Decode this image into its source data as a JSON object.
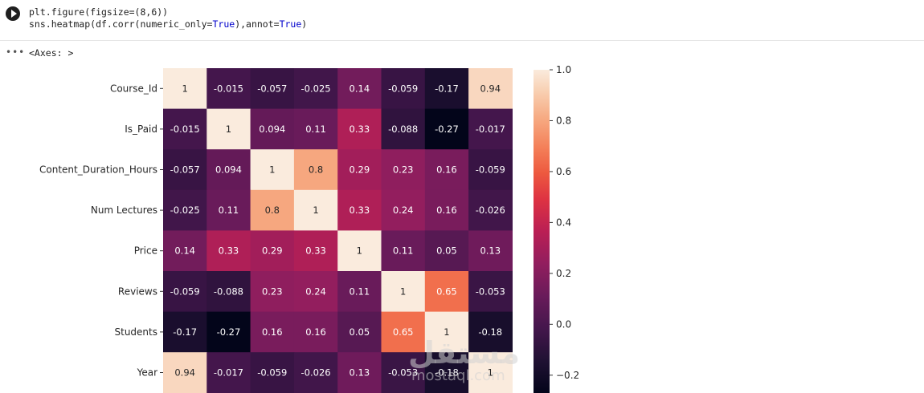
{
  "cell": {
    "code_line1": "plt.figure(figsize=(8,6))",
    "code_line2_a": "sns.heatmap(df.corr(numeric_only=",
    "code_line2_b": "True",
    "code_line2_c": "),annot=",
    "code_line2_d": "True",
    "code_line2_e": ")"
  },
  "output": {
    "more_icon": "ellipsis-icon",
    "axes_text": "<Axes: >"
  },
  "watermark": {
    "arabic": "مستقل",
    "latin": "mostaql.com"
  },
  "chart_data": {
    "type": "heatmap",
    "row_labels": [
      "Course_Id",
      "Is_Paid",
      "Content_Duration_Hours",
      "Num Lectures",
      "Price",
      "Reviews",
      "Students",
      "Year"
    ],
    "col_labels": [],
    "values": [
      [
        1,
        -0.015,
        -0.057,
        -0.025,
        0.14,
        -0.059,
        -0.17,
        0.94
      ],
      [
        -0.015,
        1,
        0.094,
        0.11,
        0.33,
        -0.088,
        -0.27,
        -0.017
      ],
      [
        -0.057,
        0.094,
        1,
        0.8,
        0.29,
        0.23,
        0.16,
        -0.059
      ],
      [
        -0.025,
        0.11,
        0.8,
        1,
        0.33,
        0.24,
        0.16,
        -0.026
      ],
      [
        0.14,
        0.33,
        0.29,
        0.33,
        1,
        0.11,
        0.05,
        0.13
      ],
      [
        -0.059,
        -0.088,
        0.23,
        0.24,
        0.11,
        1,
        0.65,
        -0.053
      ],
      [
        -0.17,
        -0.27,
        0.16,
        0.16,
        0.05,
        0.65,
        1,
        -0.18
      ],
      [
        0.94,
        -0.017,
        -0.059,
        -0.026,
        0.13,
        -0.053,
        -0.18,
        1
      ]
    ],
    "annotations": [
      [
        "1",
        "-0.015",
        "-0.057",
        "-0.025",
        "0.14",
        "-0.059",
        "-0.17",
        "0.94"
      ],
      [
        "-0.015",
        "1",
        "0.094",
        "0.11",
        "0.33",
        "-0.088",
        "-0.27",
        "-0.017"
      ],
      [
        "-0.057",
        "0.094",
        "1",
        "0.8",
        "0.29",
        "0.23",
        "0.16",
        "-0.059"
      ],
      [
        "-0.025",
        "0.11",
        "0.8",
        "1",
        "0.33",
        "0.24",
        "0.16",
        "-0.026"
      ],
      [
        "0.14",
        "0.33",
        "0.29",
        "0.33",
        "1",
        "0.11",
        "0.05",
        "0.13"
      ],
      [
        "-0.059",
        "-0.088",
        "0.23",
        "0.24",
        "0.11",
        "1",
        "0.65",
        "-0.053"
      ],
      [
        "-0.17",
        "-0.27",
        "0.16",
        "0.16",
        "0.05",
        "0.65",
        "1",
        "-0.18"
      ],
      [
        "0.94",
        "-0.017",
        "-0.059",
        "-0.026",
        "0.13",
        "-0.053",
        "-0.18",
        "1"
      ]
    ],
    "colorbar": {
      "ticks": [
        1.0,
        0.8,
        0.6,
        0.4,
        0.2,
        0.0,
        -0.2
      ],
      "tick_labels": [
        "1.0",
        "0.8",
        "0.6",
        "0.4",
        "0.2",
        "0.0",
        "−0.2"
      ],
      "vmin": -0.27,
      "vmax": 1.0,
      "colormap": "rocket"
    }
  }
}
